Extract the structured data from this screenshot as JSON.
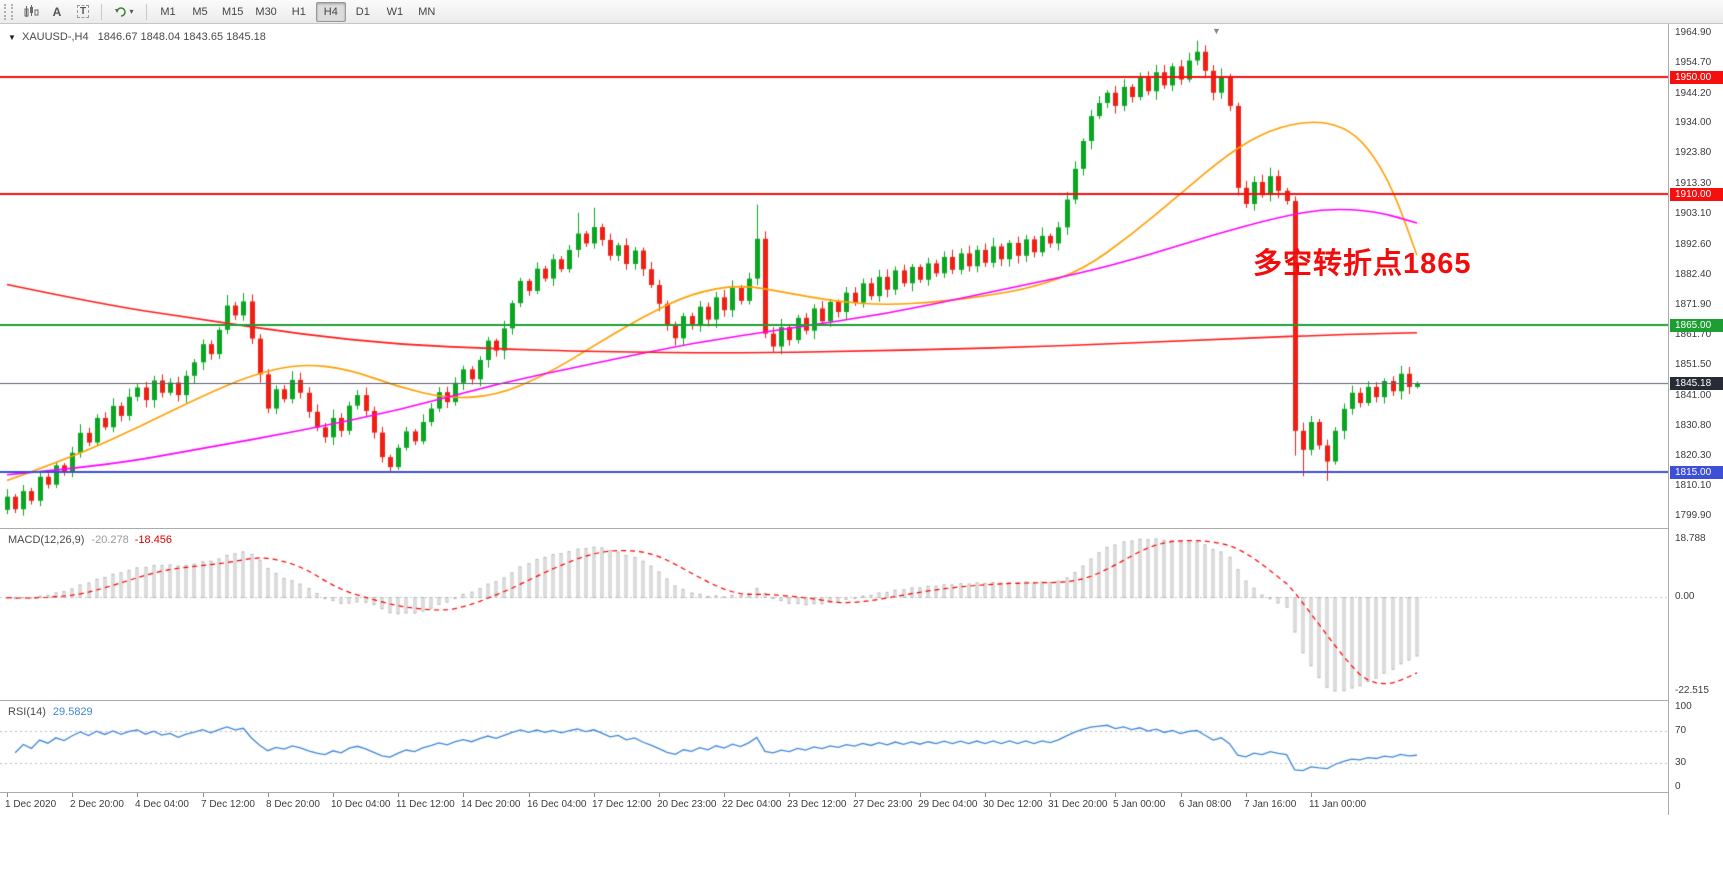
{
  "toolbar": {
    "icons": [
      {
        "name": "candles-chart-icon"
      },
      {
        "name": "letter-a-icon",
        "label": "A"
      },
      {
        "name": "template-t-icon",
        "label": "T"
      },
      {
        "name": "refresh-cycle-icon"
      }
    ],
    "caret": "▾",
    "timeframes": [
      "M1",
      "M5",
      "M15",
      "M30",
      "H1",
      "H4",
      "D1",
      "W1",
      "MN"
    ],
    "active_timeframe": "H4"
  },
  "chart": {
    "symbol_caret": "▼",
    "symbol_label": "XAUUSD-,H4",
    "ohlc_text": "1846.67 1848.04 1843.65 1845.18",
    "shift_marker": "▼",
    "annotation": {
      "text": "多空转折点1865",
      "color": "#f20d0d"
    },
    "price_axis_labels": [
      "1964.90",
      "1954.70",
      "1944.20",
      "1934.00",
      "1923.80",
      "1913.30",
      "1903.10",
      "1892.60",
      "1882.40",
      "1871.90",
      "1861.70",
      "1851.50",
      "1841.00",
      "1830.80",
      "1820.30",
      "1810.10",
      "1799.90"
    ],
    "horizontal_lines": [
      {
        "price": 1950.0,
        "label": "1950.00",
        "color": "#f50f0f"
      },
      {
        "price": 1910.0,
        "label": "1910.00",
        "color": "#f50f0f"
      },
      {
        "price": 1865.0,
        "label": "1865.00",
        "color": "#1d9e32"
      },
      {
        "price": 1815.0,
        "label": "1815.00",
        "color": "#3e4fd7"
      }
    ],
    "current_price": {
      "value": 1845.18,
      "label": "1845.18",
      "line_color": "#5a6070",
      "tag_color": "#262b36"
    },
    "time_labels": [
      {
        "i": 0,
        "t": "1 Dec 2020"
      },
      {
        "i": 8,
        "t": "2 Dec 20:00"
      },
      {
        "i": 16,
        "t": "4 Dec 04:00"
      },
      {
        "i": 24,
        "t": "7 Dec 12:00"
      },
      {
        "i": 32,
        "t": "8 Dec 20:00"
      },
      {
        "i": 40,
        "t": "10 Dec 04:00"
      },
      {
        "i": 48,
        "t": "11 Dec 12:00"
      },
      {
        "i": 56,
        "t": "14 Dec 20:00"
      },
      {
        "i": 64,
        "t": "16 Dec 04:00"
      },
      {
        "i": 72,
        "t": "17 Dec 12:00"
      },
      {
        "i": 80,
        "t": "20 Dec 23:00"
      },
      {
        "i": 88,
        "t": "22 Dec 04:00"
      },
      {
        "i": 96,
        "t": "23 Dec 12:00"
      },
      {
        "i": 104,
        "t": "27 Dec 23:00"
      },
      {
        "i": 112,
        "t": "29 Dec 04:00"
      },
      {
        "i": 120,
        "t": "30 Dec 12:00"
      },
      {
        "i": 128,
        "t": "31 Dec 20:00"
      },
      {
        "i": 136,
        "t": "5 Jan 00:00"
      },
      {
        "i": 144,
        "t": "6 Jan 08:00"
      },
      {
        "i": 152,
        "t": "7 Jan 16:00"
      },
      {
        "i": 160,
        "t": "11 Jan 00:00"
      }
    ]
  },
  "macd": {
    "label": "MACD(12,26,9)",
    "value_main": "-20.278",
    "value_signal": "-18.456",
    "axis_labels": [
      "18.788",
      "0.00",
      "-22.515"
    ]
  },
  "rsi": {
    "label": "RSI(14)",
    "value": "29.5829",
    "levels": [
      70,
      30
    ],
    "axis_labels": [
      "100",
      "70",
      "30",
      "0"
    ]
  },
  "colors": {
    "candle_up": "#0aa622",
    "candle_down": "#f01f14",
    "macd_bars": "#b8b8b8",
    "macd_signal": "#fd0000",
    "rsi_line": "#3e87d8",
    "current_line": "#5a6070",
    "level_dots": "#bdbdbd"
  },
  "chart_data": {
    "type": "candlestick",
    "symbol": "XAUUSD-",
    "timeframe": "H4",
    "ohlc_current": {
      "open": 1846.67,
      "high": 1848.04,
      "low": 1843.65,
      "close": 1845.18
    },
    "y_range": [
      1799.9,
      1964.9
    ],
    "levels": [
      1950.0,
      1910.0,
      1865.0,
      1815.0
    ],
    "first_open": 1802.0,
    "closes": [
      1806.5,
      1802.2,
      1808.4,
      1805.1,
      1813.3,
      1810.6,
      1817.2,
      1814.8,
      1821.5,
      1828.3,
      1825.0,
      1833.4,
      1830.2,
      1837.5,
      1834.1,
      1840.6,
      1843.8,
      1839.5,
      1846.2,
      1842.0,
      1845.5,
      1841.2,
      1847.8,
      1852.4,
      1858.6,
      1855.2,
      1863.5,
      1871.8,
      1868.4,
      1873.2,
      1860.5,
      1848.3,
      1836.6,
      1843.2,
      1839.8,
      1846.4,
      1842.0,
      1835.5,
      1830.2,
      1826.8,
      1833.4,
      1829.0,
      1837.6,
      1841.2,
      1835.8,
      1828.4,
      1820.0,
      1816.6,
      1823.2,
      1828.8,
      1825.4,
      1832.0,
      1836.6,
      1842.2,
      1838.8,
      1845.4,
      1850.0,
      1846.6,
      1853.2,
      1859.8,
      1856.4,
      1864.0,
      1872.6,
      1880.2,
      1876.8,
      1884.4,
      1881.0,
      1887.6,
      1884.2,
      1890.8,
      1896.4,
      1893.0,
      1898.6,
      1894.2,
      1888.8,
      1892.4,
      1886.0,
      1890.6,
      1884.2,
      1878.8,
      1872.4,
      1865.0,
      1860.6,
      1868.2,
      1864.8,
      1871.4,
      1867.0,
      1874.6,
      1870.2,
      1877.8,
      1873.4,
      1881.0,
      1894.6,
      1862.2,
      1857.8,
      1864.4,
      1860.0,
      1867.6,
      1863.2,
      1870.8,
      1866.4,
      1873.0,
      1869.6,
      1876.2,
      1872.8,
      1879.4,
      1875.0,
      1881.6,
      1877.2,
      1883.8,
      1879.4,
      1885.0,
      1880.6,
      1886.2,
      1882.8,
      1888.4,
      1884.0,
      1889.6,
      1885.2,
      1890.8,
      1886.4,
      1892.0,
      1887.6,
      1893.2,
      1888.8,
      1894.4,
      1890.0,
      1895.6,
      1893.0,
      1898.5,
      1908.0,
      1918.5,
      1928.0,
      1936.5,
      1941.0,
      1944.5,
      1940.0,
      1946.5,
      1943.0,
      1949.5,
      1945.0,
      1951.5,
      1947.0,
      1953.5,
      1949.0,
      1955.5,
      1958.5,
      1952.0,
      1944.5,
      1950.0,
      1940.0,
      1912.0,
      1906.5,
      1914.0,
      1909.5,
      1916.0,
      1911.0,
      1907.5,
      1829.0,
      1822.5,
      1832.0,
      1824.0,
      1818.5,
      1829.0,
      1836.5,
      1842.0,
      1838.5,
      1844.0,
      1840.5,
      1846.0,
      1842.5,
      1848.5,
      1844.0,
      1845.18
    ],
    "wick_overrides": {
      "27": {
        "h": 1875.4
      },
      "47": {
        "l": 1815.2
      },
      "70": {
        "h": 1903.5
      },
      "72": {
        "h": 1905.2
      },
      "92": {
        "h": 1906.3
      },
      "146": {
        "h": 1962.3
      },
      "158": {
        "l": 1820.5
      },
      "159": {
        "l": 1813.5
      },
      "162": {
        "l": 1811.9
      }
    },
    "moving_averages": [
      {
        "name": "ma-fast-orange",
        "color": "#ff9f00",
        "points": [
          [
            0,
            1812
          ],
          [
            8,
            1820
          ],
          [
            16,
            1830
          ],
          [
            24,
            1841
          ],
          [
            30,
            1848
          ],
          [
            36,
            1852
          ],
          [
            42,
            1850
          ],
          [
            48,
            1844
          ],
          [
            54,
            1840
          ],
          [
            60,
            1841
          ],
          [
            66,
            1848
          ],
          [
            72,
            1858
          ],
          [
            78,
            1868
          ],
          [
            84,
            1876
          ],
          [
            90,
            1879
          ],
          [
            96,
            1876
          ],
          [
            102,
            1873
          ],
          [
            108,
            1872
          ],
          [
            114,
            1873
          ],
          [
            120,
            1875
          ],
          [
            126,
            1878
          ],
          [
            132,
            1884
          ],
          [
            138,
            1896
          ],
          [
            144,
            1910
          ],
          [
            150,
            1924
          ],
          [
            155,
            1932
          ],
          [
            160,
            1935
          ],
          [
            164,
            1933
          ],
          [
            167,
            1926
          ],
          [
            170,
            1912
          ],
          [
            173,
            1889
          ]
        ]
      },
      {
        "name": "ma-slow-magenta",
        "color": "#ff00ff",
        "points": [
          [
            0,
            1814
          ],
          [
            12,
            1817
          ],
          [
            24,
            1823
          ],
          [
            36,
            1829
          ],
          [
            48,
            1836
          ],
          [
            60,
            1845
          ],
          [
            72,
            1852
          ],
          [
            84,
            1859
          ],
          [
            96,
            1864
          ],
          [
            108,
            1869
          ],
          [
            120,
            1876
          ],
          [
            132,
            1883
          ],
          [
            140,
            1889
          ],
          [
            148,
            1896
          ],
          [
            156,
            1902
          ],
          [
            162,
            1905
          ],
          [
            168,
            1904
          ],
          [
            173,
            1900
          ]
        ]
      },
      {
        "name": "ma-long-red",
        "color": "#ff1a1a",
        "points": [
          [
            0,
            1879
          ],
          [
            12,
            1872
          ],
          [
            24,
            1867
          ],
          [
            36,
            1862
          ],
          [
            48,
            1858.5
          ],
          [
            60,
            1857
          ],
          [
            72,
            1856
          ],
          [
            90,
            1855.5
          ],
          [
            110,
            1856.5
          ],
          [
            130,
            1858
          ],
          [
            150,
            1860.5
          ],
          [
            165,
            1862
          ],
          [
            173,
            1862.5
          ]
        ]
      }
    ]
  }
}
